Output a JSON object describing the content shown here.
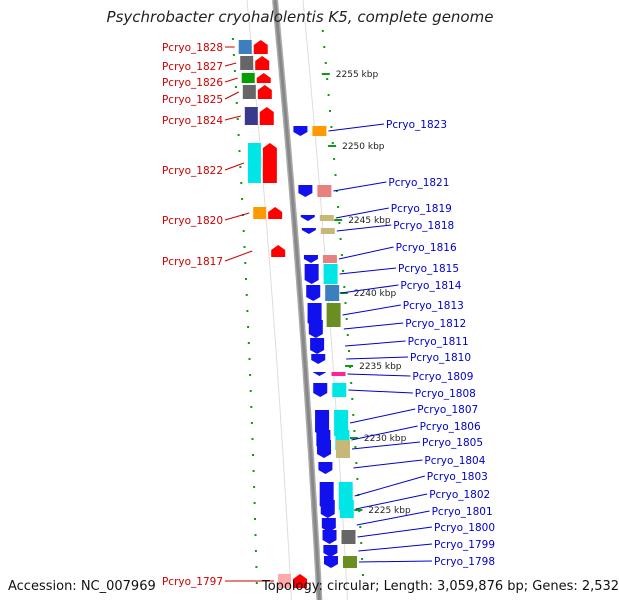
{
  "title": "Psychrobacter cryohalolentis K5, complete genome",
  "accession_text": "Accession: NC_007969",
  "topology_text": "Topology: circular; Length: 3,059,876 bp; Genes: 2,532",
  "colors": {
    "reverse_label": "#cc0000",
    "forward_label": "#0000cc",
    "reverse_gene": "#ff0000",
    "forward_gene": "#1111ee",
    "backbone": "#888888",
    "ticks": "#119911"
  },
  "ruler_labels": [
    "2255 kbp",
    "2250 kbp",
    "2245 kbp",
    "2240 kbp",
    "2235 kbp",
    "2230 kbp",
    "2225 kbp"
  ],
  "reverse_genes": [
    {
      "id": "Pcryo_1828",
      "label": "Pcryo_1828",
      "cog_color": "#3b7fbf"
    },
    {
      "id": "Pcryo_1827",
      "label": "Pcryo_1827",
      "cog_color": "#666666"
    },
    {
      "id": "Pcryo_1826",
      "label": "Pcryo_1826",
      "cog_color": "#00a000"
    },
    {
      "id": "Pcryo_1825",
      "label": "Pcryo_1825",
      "cog_color": "#666666"
    },
    {
      "id": "Pcryo_1824",
      "label": "Pcryo_1824",
      "cog_color": "#3a3a8c"
    },
    {
      "id": "Pcryo_1822",
      "label": "Pcryo_1822",
      "cog_color": "#00e5e5"
    },
    {
      "id": "Pcryo_1820",
      "label": "Pcryo_1820",
      "cog_color": "#ff9900"
    },
    {
      "id": "Pcryo_1817",
      "label": "Pcryo_1817",
      "cog_color": ""
    },
    {
      "id": "Pcryo_1797",
      "label": "Pcryo_1797",
      "cog_color": "#ffaaaa"
    }
  ],
  "forward_genes": [
    {
      "id": "Pcryo_1823",
      "label": "Pcryo_1823",
      "cog_color": "#ff9900"
    },
    {
      "id": "Pcryo_1821",
      "label": "Pcryo_1821",
      "cog_color": "#e88080"
    },
    {
      "id": "Pcryo_1819",
      "label": "Pcryo_1819",
      "cog_color": "#c8b878"
    },
    {
      "id": "Pcryo_1818",
      "label": "Pcryo_1818",
      "cog_color": "#c8b878"
    },
    {
      "id": "Pcryo_1816",
      "label": "Pcryo_1816",
      "cog_color": "#e88080"
    },
    {
      "id": "Pcryo_1815",
      "label": "Pcryo_1815",
      "cog_color": "#00e5e5"
    },
    {
      "id": "Pcryo_1814",
      "label": "Pcryo_1814",
      "cog_color": "#3b7fbf"
    },
    {
      "id": "Pcryo_1813",
      "label": "Pcryo_1813",
      "cog_color": "#6b8e23"
    },
    {
      "id": "Pcryo_1812",
      "label": "Pcryo_1812",
      "cog_color": ""
    },
    {
      "id": "Pcryo_1811",
      "label": "Pcryo_1811",
      "cog_color": ""
    },
    {
      "id": "Pcryo_1810",
      "label": "Pcryo_1810",
      "cog_color": ""
    },
    {
      "id": "Pcryo_1809",
      "label": "Pcryo_1809",
      "cog_color": "#ff2299"
    },
    {
      "id": "Pcryo_1808",
      "label": "Pcryo_1808",
      "cog_color": "#00e5e5"
    },
    {
      "id": "Pcryo_1807",
      "label": "Pcryo_1807",
      "cog_color": "#00e5e5"
    },
    {
      "id": "Pcryo_1806",
      "label": "Pcryo_1806",
      "cog_color": "#00e5e5"
    },
    {
      "id": "Pcryo_1805",
      "label": "Pcryo_1805",
      "cog_color": "#c8b878"
    },
    {
      "id": "Pcryo_1804",
      "label": "Pcryo_1804",
      "cog_color": ""
    },
    {
      "id": "Pcryo_1803",
      "label": "Pcryo_1803",
      "cog_color": "#00e5e5"
    },
    {
      "id": "Pcryo_1802",
      "label": "Pcryo_1802",
      "cog_color": "#00e5e5"
    },
    {
      "id": "Pcryo_1801",
      "label": "Pcryo_1801",
      "cog_color": ""
    },
    {
      "id": "Pcryo_1800",
      "label": "Pcryo_1800",
      "cog_color": "#666666"
    },
    {
      "id": "Pcryo_1799",
      "label": "Pcryo_1799",
      "cog_color": ""
    },
    {
      "id": "Pcryo_1798",
      "label": "Pcryo_1798",
      "cog_color": "#6b8e23"
    }
  ]
}
